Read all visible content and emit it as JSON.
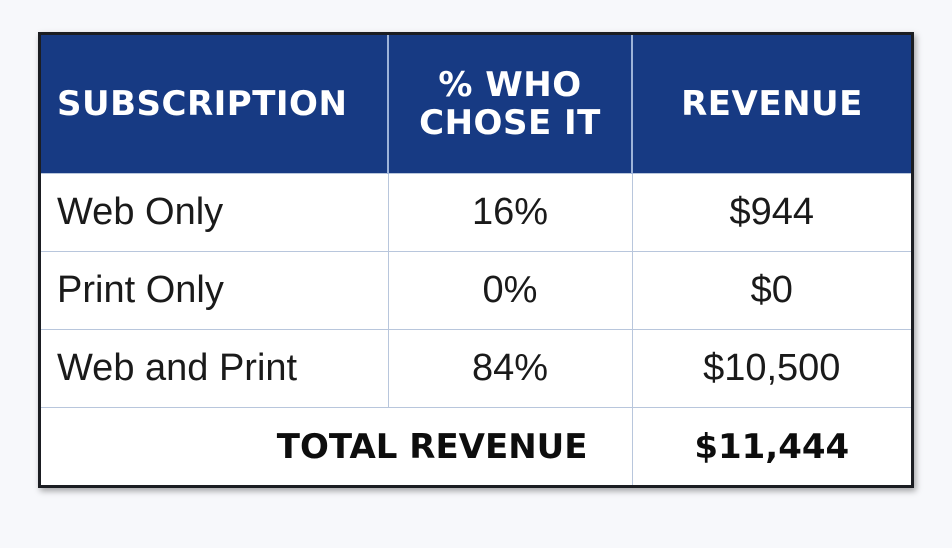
{
  "chart_data": {
    "type": "table",
    "columns": [
      "SUBSCRIPTION",
      "% WHO CHOSE IT",
      "REVENUE"
    ],
    "rows": [
      {
        "subscription": "Web Only",
        "percent": "16%",
        "revenue": "$944"
      },
      {
        "subscription": "Print Only",
        "percent": "0%",
        "revenue": "$0"
      },
      {
        "subscription": "Web and Print",
        "percent": "84%",
        "revenue": "$10,500"
      }
    ],
    "total": {
      "label": "TOTAL REVENUE",
      "value": "$11,444"
    },
    "colors": {
      "header_bg": "#173a83",
      "header_text": "#ffffff",
      "divider": "#b8c6dc"
    }
  }
}
